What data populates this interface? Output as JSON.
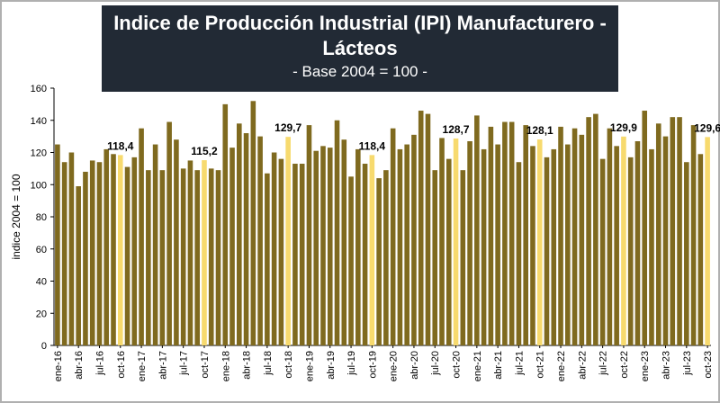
{
  "chart_data": {
    "type": "bar",
    "title_line1": "Indice de Producción Industrial (IPI) Manufacturero -",
    "title_line2": "Lácteos",
    "subtitle": "- Base 2004 = 100 -",
    "ylabel": "indice 2004 = 100",
    "xlabel": "",
    "ylim": [
      0,
      160
    ],
    "yticks": [
      0,
      20,
      40,
      60,
      80,
      100,
      120,
      140,
      160
    ],
    "grid": false,
    "legend": "none",
    "colors": {
      "bar": "#7f6a1f",
      "highlight": "#f7da6e"
    },
    "categories": [
      "ene-16",
      "feb-16",
      "mar-16",
      "abr-16",
      "may-16",
      "jun-16",
      "jul-16",
      "ago-16",
      "sep-16",
      "oct-16",
      "nov-16",
      "dic-16",
      "ene-17",
      "feb-17",
      "mar-17",
      "abr-17",
      "may-17",
      "jun-17",
      "jul-17",
      "ago-17",
      "sep-17",
      "oct-17",
      "nov-17",
      "dic-17",
      "ene-18",
      "feb-18",
      "mar-18",
      "abr-18",
      "may-18",
      "jun-18",
      "jul-18",
      "ago-18",
      "sep-18",
      "oct-18",
      "nov-18",
      "dic-18",
      "ene-19",
      "feb-19",
      "mar-19",
      "abr-19",
      "may-19",
      "jun-19",
      "jul-19",
      "ago-19",
      "sep-19",
      "oct-19",
      "nov-19",
      "dic-19",
      "ene-20",
      "feb-20",
      "mar-20",
      "abr-20",
      "may-20",
      "jun-20",
      "jul-20",
      "ago-20",
      "sep-20",
      "oct-20",
      "nov-20",
      "dic-20",
      "ene-21",
      "feb-21",
      "mar-21",
      "abr-21",
      "may-21",
      "jun-21",
      "jul-21",
      "ago-21",
      "sep-21",
      "oct-21",
      "nov-21",
      "dic-21",
      "ene-22",
      "feb-22",
      "mar-22",
      "abr-22",
      "may-22",
      "jun-22",
      "jul-22",
      "ago-22",
      "sep-22",
      "oct-22",
      "nov-22",
      "dic-22",
      "ene-23",
      "feb-23",
      "mar-23",
      "abr-23",
      "may-23",
      "jun-23",
      "jul-23",
      "ago-23",
      "sep-23",
      "oct-23"
    ],
    "tick_labels": [
      "ene-16",
      "abr-16",
      "jul-16",
      "oct-16",
      "ene-17",
      "abr-17",
      "jul-17",
      "oct-17",
      "ene-18",
      "abr-18",
      "jul-18",
      "oct-18",
      "ene-19",
      "abr-19",
      "jul-19",
      "oct-19",
      "ene-20",
      "abr-20",
      "jul-20",
      "oct-20",
      "ene-21",
      "abr-21",
      "jul-21",
      "oct-21",
      "ene-22",
      "abr-22",
      "jul-22",
      "oct-22",
      "ene-23",
      "abr-23",
      "jul-23",
      "oct-23"
    ],
    "values": [
      125,
      114,
      120,
      99,
      108,
      115,
      114,
      122,
      119,
      118.4,
      111,
      117,
      135,
      109,
      125,
      109,
      139,
      128,
      110,
      115,
      109,
      115.2,
      110,
      109,
      150,
      123,
      138,
      132,
      152,
      130,
      107,
      120,
      116,
      129.7,
      113,
      113,
      137,
      121,
      124,
      123,
      140,
      128,
      105,
      122,
      113,
      118.4,
      104,
      109,
      135,
      122,
      125,
      131,
      146,
      144,
      109,
      129,
      116,
      128.7,
      109,
      127,
      143,
      122,
      136,
      125,
      139,
      139,
      114,
      137,
      124,
      128.1,
      117,
      122,
      136,
      125,
      135,
      131,
      142,
      144,
      116,
      135,
      124,
      129.9,
      117,
      127,
      146,
      122,
      138,
      130,
      142,
      142,
      114,
      137,
      119,
      129.6
    ],
    "highlight_categories": [
      "oct-16",
      "oct-17",
      "oct-18",
      "oct-19",
      "oct-20",
      "oct-21",
      "oct-22",
      "oct-23"
    ],
    "data_labels": [
      {
        "category": "oct-16",
        "text": "118,4"
      },
      {
        "category": "oct-17",
        "text": "115,2"
      },
      {
        "category": "oct-18",
        "text": "129,7"
      },
      {
        "category": "oct-19",
        "text": "118,4"
      },
      {
        "category": "oct-20",
        "text": "128,7"
      },
      {
        "category": "oct-21",
        "text": "128,1"
      },
      {
        "category": "oct-22",
        "text": "129,9"
      },
      {
        "category": "oct-23",
        "text": "129,6"
      }
    ]
  }
}
